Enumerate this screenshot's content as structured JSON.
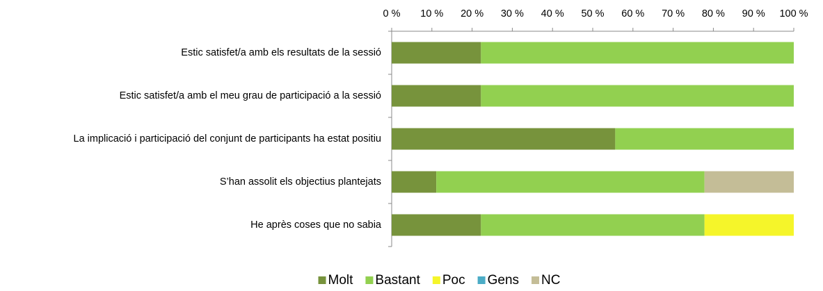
{
  "chart_data": {
    "type": "stacked_barh",
    "categories": [
      "Estic satisfet/a amb els resultats de la sessió",
      "Estic satisfet/a amb el meu grau de participació a la sessió",
      "La implicació i participació del conjunt de participants ha estat positiu",
      "S’han assolit els objectius plantejats",
      "He après coses que no sabia"
    ],
    "series": [
      {
        "name": "Molt",
        "color": "#77933c",
        "values": [
          22.2,
          22.2,
          55.6,
          11.1,
          22.2
        ]
      },
      {
        "name": "Bastant",
        "color": "#92d050",
        "values": [
          77.8,
          77.8,
          44.4,
          66.7,
          55.6
        ]
      },
      {
        "name": "Poc",
        "color": "#f5f52a",
        "values": [
          0,
          0,
          0,
          0,
          22.2
        ]
      },
      {
        "name": "Gens",
        "color": "#4bacc6",
        "values": [
          0,
          0,
          0,
          0,
          0
        ]
      },
      {
        "name": "NC",
        "color": "#c4bd97",
        "values": [
          0,
          0,
          0,
          22.2,
          0
        ]
      }
    ],
    "xlim": [
      0,
      100
    ],
    "xticks": [
      {
        "value": 0,
        "label": "0 %"
      },
      {
        "value": 10,
        "label": "10 %"
      },
      {
        "value": 20,
        "label": "20 %"
      },
      {
        "value": 30,
        "label": "30 %"
      },
      {
        "value": 40,
        "label": "40 %"
      },
      {
        "value": 50,
        "label": "50 %"
      },
      {
        "value": 60,
        "label": "60 %"
      },
      {
        "value": 70,
        "label": "70 %"
      },
      {
        "value": 80,
        "label": "80 %"
      },
      {
        "value": 90,
        "label": "90 %"
      },
      {
        "value": 100,
        "label": "100 %"
      }
    ],
    "legend": "bottom"
  }
}
